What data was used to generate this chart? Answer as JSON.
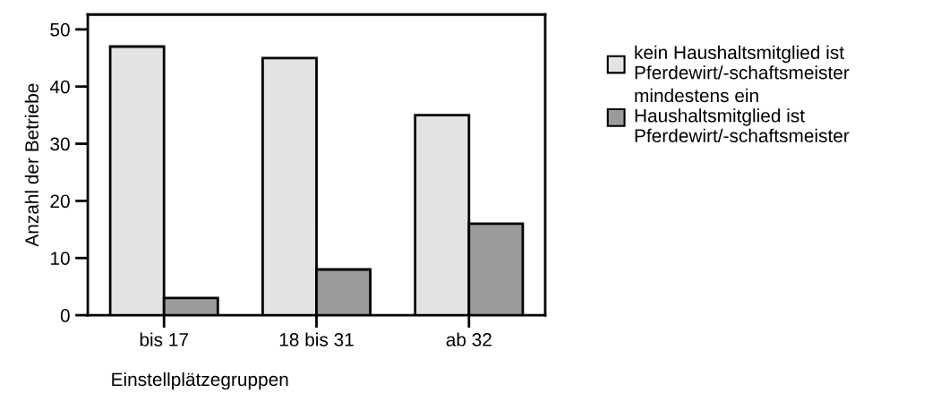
{
  "chart_data": {
    "type": "bar",
    "xlabel": "Einstellplätzegruppen",
    "ylabel": "Anzahl der Betriebe",
    "categories": [
      "bis 17",
      "18 bis 31",
      "ab 32"
    ],
    "series": [
      {
        "name": "kein Haushaltsmitglied ist\nPferdewirt/-schaftsmeister",
        "color": "#e3e3e3",
        "values": [
          47,
          45,
          35
        ]
      },
      {
        "name": "mindestens ein\nHaushaltsmitglied ist\nPferdewirt/-schaftsmeister",
        "color": "#9b9b9b",
        "values": [
          3,
          8,
          16
        ]
      }
    ],
    "ylim": [
      0,
      52.6
    ],
    "yticks": [
      0,
      10,
      20,
      30,
      40,
      50
    ],
    "grid": false,
    "legend": "right"
  }
}
